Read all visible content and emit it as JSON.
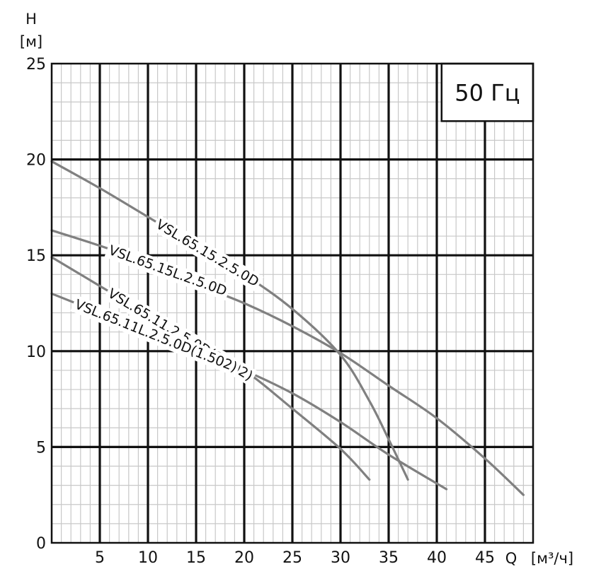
{
  "chart_data": {
    "type": "line",
    "frequency_label": "50 Гц",
    "ylabel_symbol": "H",
    "ylabel_unit": "[м]",
    "xlabel_symbol": "Q",
    "xlabel_unit": "[м³/ч]",
    "xlim": [
      0,
      50
    ],
    "ylim": [
      0,
      25
    ],
    "x_ticks": [
      5,
      10,
      15,
      20,
      25,
      30,
      35,
      40,
      45
    ],
    "y_ticks": [
      0,
      5,
      10,
      15,
      20,
      25
    ],
    "grid": true,
    "series": [
      {
        "name": "VSL.65.15.2.5.0D",
        "x": [
          0,
          5,
          10,
          15,
          20,
          25,
          30,
          33,
          35,
          37
        ],
        "y": [
          19.9,
          18.5,
          17.0,
          15.5,
          14.0,
          12.2,
          9.8,
          7.4,
          5.4,
          3.3
        ]
      },
      {
        "name": "VSL.65.15L.2.5.0D",
        "x": [
          0,
          5,
          10,
          15,
          20,
          25,
          30,
          35,
          40,
          45,
          49
        ],
        "y": [
          16.3,
          15.5,
          14.6,
          13.5,
          12.5,
          11.3,
          9.9,
          8.2,
          6.5,
          4.4,
          2.5
        ]
      },
      {
        "name": "VSL.65.11.2.5.0D(1.502)",
        "x": [
          0,
          5,
          10,
          15,
          20,
          25,
          30,
          33
        ],
        "y": [
          14.9,
          13.4,
          11.9,
          10.4,
          9.0,
          7.0,
          4.9,
          3.3
        ]
      },
      {
        "name": "VSL.65.11L.2.5.0D(1.502)",
        "x": [
          0,
          5,
          10,
          15,
          20,
          25,
          30,
          35,
          41
        ],
        "y": [
          13.0,
          12.0,
          11.0,
          10.0,
          9.0,
          7.8,
          6.3,
          4.6,
          2.8
        ]
      }
    ]
  }
}
